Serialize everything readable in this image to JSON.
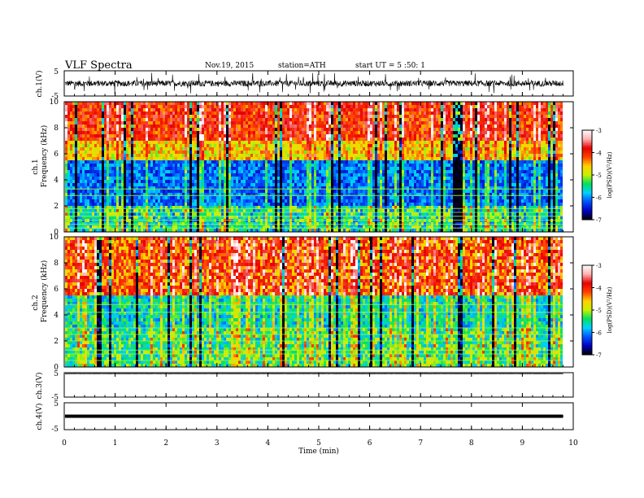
{
  "header": {
    "title": "VLF  Spectra",
    "date": "Nov.19, 2015",
    "station": "station=ATH",
    "start": "start  UT  =   5  :50: 1"
  },
  "chart_data": [
    {
      "type": "line",
      "panel": "ch1-waveform",
      "ylabel": "ch.1(V)",
      "xlim": [
        0,
        10
      ],
      "ylim": [
        -5,
        5
      ],
      "yticks": [
        "5",
        "-5"
      ],
      "baseline": 0,
      "noise_amplitude": 1.2,
      "data_end_min": 9.8,
      "color": "#000000"
    },
    {
      "type": "heatmap",
      "panel": "ch1-spectrogram",
      "ylabel": "ch.1\nFrequency  (kHz)",
      "xlim": [
        0,
        10
      ],
      "ylim": [
        0,
        10
      ],
      "yticks": [
        "0",
        "2",
        "4",
        "6",
        "8",
        "10"
      ],
      "data_end_min": 9.8,
      "colorbar": {
        "label": "log(PSD)(V²/Hz)",
        "range": [
          -7,
          -3
        ],
        "ticks": [
          "-3",
          "-4",
          "-5",
          "-6",
          "-7"
        ],
        "colors": [
          "#000000",
          "#0000c0",
          "#0050ff",
          "#00d0ff",
          "#00e060",
          "#c8f000",
          "#ffd000",
          "#ff4000",
          "#e80000",
          "#ffb0b0",
          "#ffffff"
        ]
      }
    },
    {
      "type": "heatmap",
      "panel": "ch2-spectrogram",
      "ylabel": "ch.2\nFrequency  (kHz)",
      "xlim": [
        0,
        10
      ],
      "ylim": [
        0,
        10
      ],
      "yticks": [
        "0",
        "2",
        "4",
        "6",
        "8",
        "10"
      ],
      "data_end_min": 9.8,
      "colorbar": {
        "label": "log(PSD)(V²/Hz)",
        "range": [
          -7,
          -3
        ],
        "ticks": [
          "-3",
          "-4",
          "-5",
          "-6",
          "-7"
        ],
        "colors": [
          "#000000",
          "#0000c0",
          "#0050ff",
          "#00d0ff",
          "#00e060",
          "#c8f000",
          "#ffd000",
          "#ff4000",
          "#e80000",
          "#ffb0b0",
          "#ffffff"
        ]
      }
    },
    {
      "type": "line",
      "panel": "ch3-waveform",
      "ylabel": "ch.3(V)",
      "xlim": [
        0,
        10
      ],
      "ylim": [
        -5,
        5
      ],
      "yticks": [
        "5",
        "-5"
      ],
      "baseline": 4.6,
      "noise_amplitude": 0.05,
      "data_end_min": 9.8,
      "color": "#000000"
    },
    {
      "type": "line",
      "panel": "ch4-waveform",
      "ylabel": "ch.4(V)",
      "xlim": [
        0,
        10
      ],
      "ylim": [
        -5,
        5
      ],
      "yticks": [
        "5",
        "-5"
      ],
      "baseline": 0,
      "noise_amplitude": 0.25,
      "data_end_min": 9.8,
      "color": "#000000"
    }
  ],
  "xaxis": {
    "label": "Time  (min)",
    "ticks": [
      "0",
      "1",
      "2",
      "3",
      "4",
      "5",
      "6",
      "7",
      "8",
      "9",
      "10"
    ]
  }
}
